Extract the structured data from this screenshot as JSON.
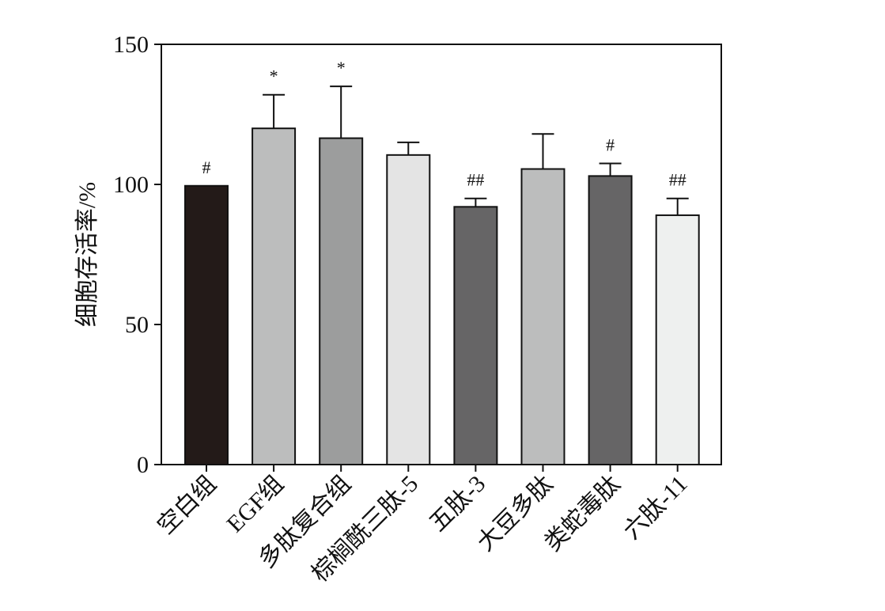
{
  "chart_data": {
    "type": "bar",
    "title": "",
    "xlabel": "",
    "ylabel": "细胞存活率/%",
    "ylim": [
      0,
      150
    ],
    "yticks": [
      0,
      50,
      100,
      150
    ],
    "grid": false,
    "legend": "none",
    "categories": [
      "空白组",
      "EGF组",
      "多肽复合组",
      "棕榈酰三肽-5",
      "五肽-3",
      "大豆多肽",
      "类蛇毒肽",
      "六肽-11"
    ],
    "series": [
      {
        "values": [
          99.5,
          120,
          116.5,
          110.5,
          92,
          105.5,
          103,
          89
        ],
        "error": [
          0,
          12,
          18.5,
          4.5,
          3,
          12.5,
          4.5,
          6
        ],
        "significance": [
          "#",
          "*",
          "*",
          "",
          "##",
          "",
          "#",
          "##"
        ],
        "colors": [
          "#231a18",
          "#bcbdbd",
          "#9c9d9d",
          "#e4e4e4",
          "#666566",
          "#bcbdbd",
          "#666566",
          "#eef0ef"
        ]
      }
    ]
  }
}
